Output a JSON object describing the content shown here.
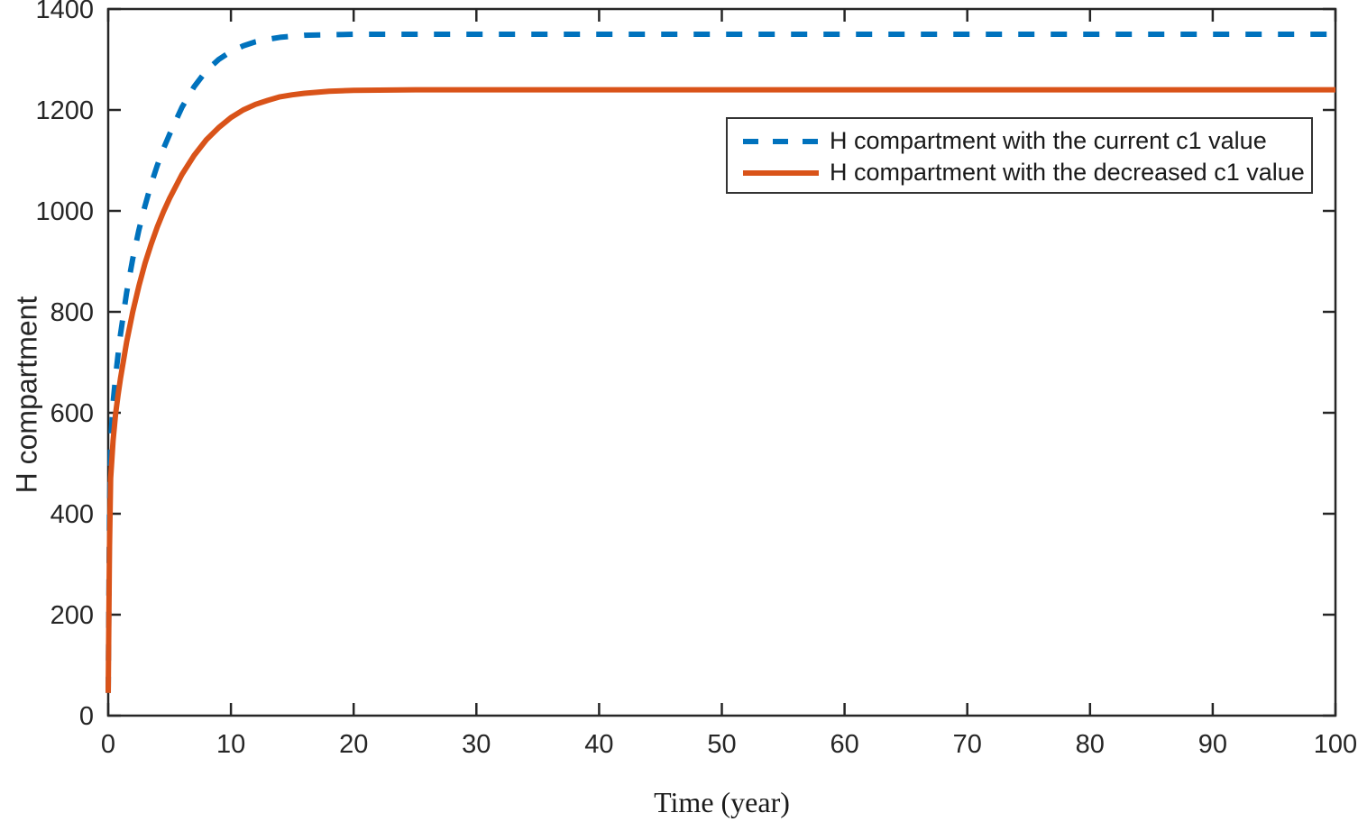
{
  "figure": {
    "background_color": "#ffffff",
    "axis_color": "#262626",
    "text_color": "#262626"
  },
  "chart_data": {
    "type": "line",
    "title": "",
    "xlabel": "Time (year)",
    "ylabel": "H compartment",
    "xlim": [
      0,
      100
    ],
    "ylim": [
      0,
      1400
    ],
    "xticks": [
      0,
      10,
      20,
      30,
      40,
      50,
      60,
      70,
      80,
      90,
      100
    ],
    "yticks": [
      0,
      200,
      400,
      600,
      800,
      1000,
      1200,
      1400
    ],
    "grid": false,
    "box": true,
    "tick_direction": "in",
    "legend": {
      "position": "upper-right-inside",
      "border_color": "#333333",
      "background": "#ffffff"
    },
    "series": [
      {
        "name": "H compartment with the current c1 value",
        "color": "#0072BD",
        "line_style": "dashed",
        "line_width": 6,
        "initial_value": 45,
        "steady_state": 1350,
        "points": [
          [
            0,
            45
          ],
          [
            0.1,
            400
          ],
          [
            0.2,
            540
          ],
          [
            0.4,
            620
          ],
          [
            0.6,
            672
          ],
          [
            0.8,
            715
          ],
          [
            1,
            755
          ],
          [
            1.5,
            838
          ],
          [
            2,
            905
          ],
          [
            2.5,
            962
          ],
          [
            3,
            1010
          ],
          [
            3.5,
            1053
          ],
          [
            4,
            1090
          ],
          [
            4.5,
            1123
          ],
          [
            5,
            1152
          ],
          [
            6,
            1205
          ],
          [
            7,
            1246
          ],
          [
            8,
            1278
          ],
          [
            9,
            1300
          ],
          [
            10,
            1316
          ],
          [
            11,
            1327
          ],
          [
            12,
            1335
          ],
          [
            13,
            1340
          ],
          [
            14,
            1344
          ],
          [
            15,
            1346
          ],
          [
            16,
            1348
          ],
          [
            18,
            1349
          ],
          [
            20,
            1350
          ],
          [
            25,
            1350
          ],
          [
            30,
            1350
          ],
          [
            40,
            1350
          ],
          [
            50,
            1350
          ],
          [
            60,
            1350
          ],
          [
            70,
            1350
          ],
          [
            80,
            1350
          ],
          [
            90,
            1350
          ],
          [
            100,
            1350
          ]
        ]
      },
      {
        "name": "H compartment with the decreased c1 value",
        "color": "#D95319",
        "line_style": "solid",
        "line_width": 6,
        "initial_value": 45,
        "steady_state": 1240,
        "points": [
          [
            0,
            45
          ],
          [
            0.1,
            330
          ],
          [
            0.2,
            470
          ],
          [
            0.4,
            545
          ],
          [
            0.6,
            598
          ],
          [
            0.8,
            635
          ],
          [
            1,
            668
          ],
          [
            1.5,
            740
          ],
          [
            2,
            800
          ],
          [
            2.5,
            851
          ],
          [
            3,
            896
          ],
          [
            3.5,
            934
          ],
          [
            4,
            968
          ],
          [
            4.5,
            998
          ],
          [
            5,
            1025
          ],
          [
            6,
            1072
          ],
          [
            7,
            1110
          ],
          [
            8,
            1141
          ],
          [
            9,
            1165
          ],
          [
            10,
            1185
          ],
          [
            11,
            1200
          ],
          [
            12,
            1211
          ],
          [
            13,
            1219
          ],
          [
            14,
            1226
          ],
          [
            15,
            1230
          ],
          [
            16,
            1233
          ],
          [
            18,
            1237
          ],
          [
            20,
            1239
          ],
          [
            25,
            1240
          ],
          [
            30,
            1240
          ],
          [
            40,
            1240
          ],
          [
            50,
            1240
          ],
          [
            60,
            1240
          ],
          [
            70,
            1240
          ],
          [
            80,
            1240
          ],
          [
            90,
            1240
          ],
          [
            100,
            1240
          ]
        ]
      }
    ]
  }
}
